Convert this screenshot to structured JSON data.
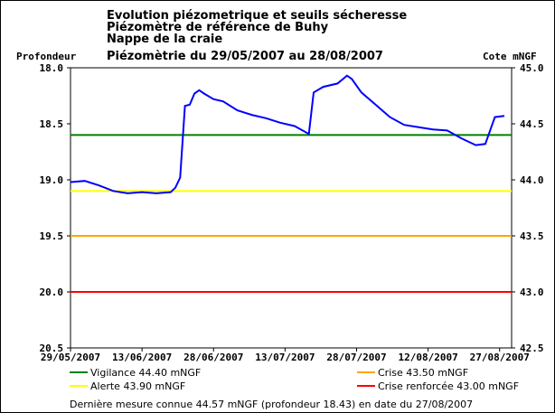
{
  "chart_data": {
    "type": "line",
    "title_lines": [
      "Evolution piézometrique et seuils sécheresse",
      "Piézomètre de référence de Buhy",
      "Nappe de la craie",
      "Piézomètrie du 29/05/2007 au 28/08/2007"
    ],
    "ylabel": "Profondeur",
    "y2label": "Cote mNGF",
    "xlim": [
      "2007-05-29",
      "2007-08-28"
    ],
    "xticks": [
      {
        "value": "2007-05-29",
        "label": "29/05/2007"
      },
      {
        "value": "2007-06-13",
        "label": "13/06/2007"
      },
      {
        "value": "2007-06-28",
        "label": "28/06/2007"
      },
      {
        "value": "2007-07-13",
        "label": "13/07/2007"
      },
      {
        "value": "2007-07-28",
        "label": "28/07/2007"
      },
      {
        "value": "2007-08-12",
        "label": "12/08/2007"
      },
      {
        "value": "2007-08-27",
        "label": "27/08/2007"
      }
    ],
    "ylim": [
      20.5,
      18
    ],
    "yticks": [
      {
        "value": 18,
        "label": "18.0"
      },
      18.5,
      {
        "value": 19,
        "label": "19.0"
      },
      19.5,
      {
        "value": 20,
        "label": "20.0"
      },
      20.5
    ],
    "y2lim": [
      42.5,
      45
    ],
    "y2ticks": [
      {
        "value": 45,
        "label": "45.0"
      },
      44.5,
      {
        "value": 44,
        "label": "44.0"
      },
      43.5,
      {
        "value": 43,
        "label": "43.0"
      },
      42.5
    ],
    "series": [
      {
        "color": "#0000ff",
        "x": [
          "2007-05-29",
          "2007-06-01",
          "2007-06-04",
          "2007-06-07",
          "2007-06-10",
          "2007-06-13",
          "2007-06-16",
          "2007-06-19",
          "2007-06-20",
          "2007-06-21",
          "2007-06-22",
          "2007-06-23",
          "2007-06-24",
          "2007-06-25",
          "2007-06-26",
          "2007-06-28",
          "2007-06-30",
          "2007-07-03",
          "2007-07-06",
          "2007-07-09",
          "2007-07-12",
          "2007-07-15",
          "2007-07-18",
          "2007-07-19",
          "2007-07-21",
          "2007-07-24",
          "2007-07-26",
          "2007-07-27",
          "2007-07-29",
          "2007-08-01",
          "2007-08-04",
          "2007-08-07",
          "2007-08-10",
          "2007-08-13",
          "2007-08-16",
          "2007-08-19",
          "2007-08-22",
          "2007-08-24",
          "2007-08-25",
          "2007-08-26",
          "2007-08-28"
        ],
        "values": [
          19.02,
          19.01,
          19.05,
          19.1,
          19.12,
          19.11,
          19.12,
          19.11,
          19.07,
          18.98,
          18.34,
          18.33,
          18.23,
          18.2,
          18.23,
          18.28,
          18.3,
          18.38,
          18.42,
          18.45,
          18.49,
          18.52,
          18.59,
          18.22,
          18.17,
          18.14,
          18.07,
          18.1,
          18.22,
          18.33,
          18.44,
          18.51,
          18.53,
          18.55,
          18.56,
          18.63,
          18.69,
          18.68,
          18.56,
          18.44,
          18.43
        ]
      }
    ],
    "thresholds": [
      {
        "name": "Vigilance 44.40 mNGF",
        "value": 44.4,
        "color": "#008000",
        "axis": "y2"
      },
      {
        "name": "Crise 43.50 mNGF",
        "value": 43.5,
        "color": "#ffa500",
        "axis": "y2"
      },
      {
        "name": "Alerte 43.90 mNGF",
        "value": 43.9,
        "color": "#ffff00",
        "axis": "y2"
      },
      {
        "name": "Crise renforcée 43.00 mNGF",
        "value": 43.0,
        "color": "#ff0000",
        "axis": "y2"
      }
    ],
    "footnote": "Dernière mesure connue 44.57 mNGF (profondeur 18.43) en date du 27/08/2007"
  }
}
